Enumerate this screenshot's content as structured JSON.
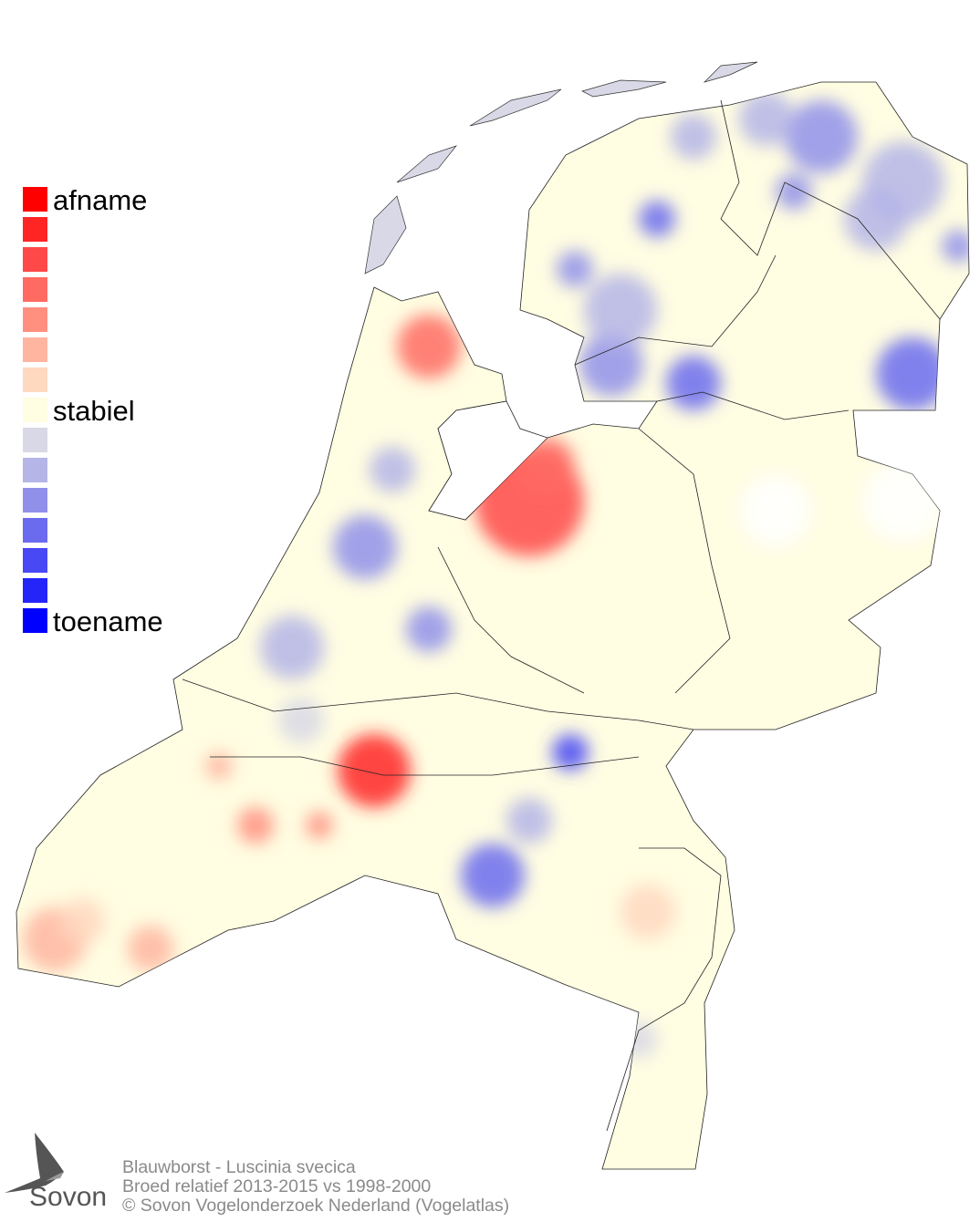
{
  "legend": {
    "items": [
      {
        "label": "afname",
        "color": "#ff0000"
      },
      {
        "label": "",
        "color": "#ff2525"
      },
      {
        "label": "",
        "color": "#ff4848"
      },
      {
        "label": "",
        "color": "#ff6b63"
      },
      {
        "label": "",
        "color": "#ff9080"
      },
      {
        "label": "",
        "color": "#ffb5a0"
      },
      {
        "label": "",
        "color": "#ffd8c0"
      },
      {
        "label": "stabiel",
        "color": "#fffde2"
      },
      {
        "label": "",
        "color": "#d8d8e6"
      },
      {
        "label": "",
        "color": "#b5b5e8"
      },
      {
        "label": "",
        "color": "#9090ea"
      },
      {
        "label": "",
        "color": "#6b6bef"
      },
      {
        "label": "",
        "color": "#4848f5"
      },
      {
        "label": "",
        "color": "#2525fa"
      },
      {
        "label": "toename",
        "color": "#0000ff"
      }
    ]
  },
  "footer": {
    "line1": "Blauwborst - Luscinia svecica",
    "line2": "Broed relatief 2013-2015 vs 1998-2000",
    "line3": "© Sovon Vogelonderzoek Nederland (Vogelatlas)"
  },
  "logo": {
    "text": "Sovon",
    "icon": "swallow-icon"
  }
}
